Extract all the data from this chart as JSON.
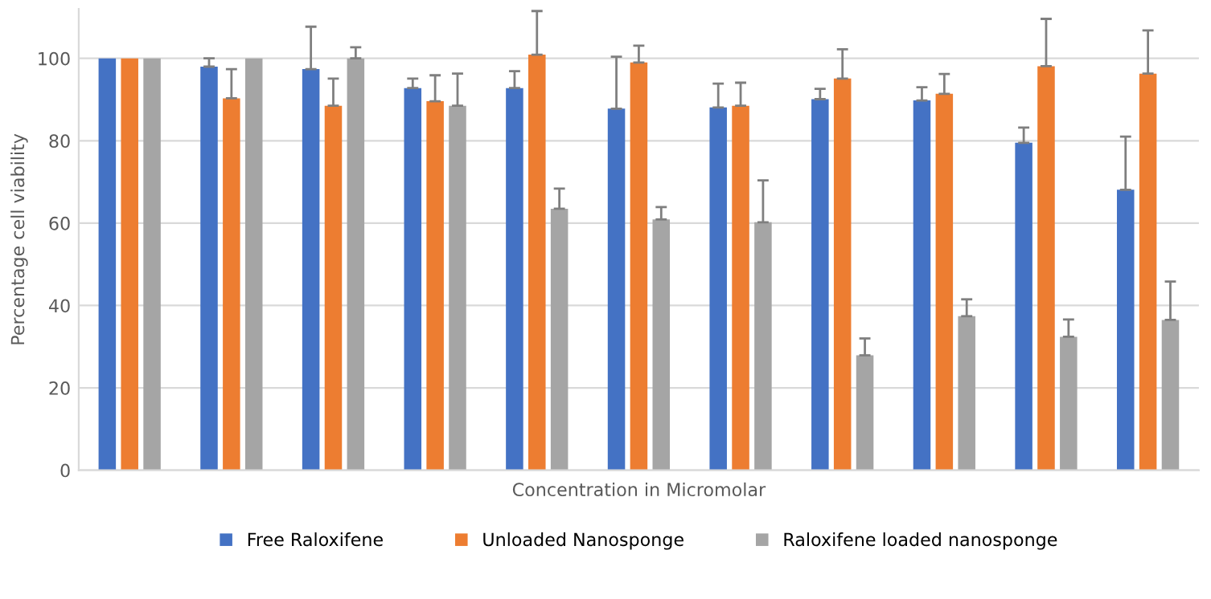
{
  "chart_data": {
    "type": "bar",
    "xlabel": "Concentration in Micromolar",
    "ylabel": "Percentage cell viability",
    "categories": [
      null,
      null,
      null,
      null,
      null,
      null,
      null,
      null,
      null,
      null,
      null
    ],
    "ylim": [
      0,
      112
    ],
    "yticks": [
      0,
      20,
      40,
      60,
      80,
      100
    ],
    "grid": "y",
    "legend": "bottom",
    "series": [
      {
        "name": "Free Raloxifene",
        "color": "#4472c4",
        "values": [
          100,
          98.0,
          97.4,
          92.8,
          92.8,
          87.8,
          88.1,
          90.1,
          89.8,
          79.5,
          68.1
        ],
        "errors": [
          null,
          [
            98.0,
            100.0
          ],
          [
            97.4,
            107.7
          ],
          [
            92.8,
            95.1
          ],
          [
            92.8,
            96.9
          ],
          [
            87.8,
            100.4
          ],
          [
            88.1,
            93.9
          ],
          [
            90.1,
            92.6
          ],
          [
            89.8,
            93.0
          ],
          [
            79.5,
            83.2
          ],
          [
            68.1,
            81.0
          ]
        ]
      },
      {
        "name": "Unloaded Nanosponge",
        "color": "#ed7d31",
        "values": [
          100,
          90.3,
          88.5,
          89.6,
          100.9,
          99.0,
          88.5,
          95.1,
          91.4,
          98.1,
          96.3
        ],
        "errors": [
          null,
          [
            90.3,
            97.4
          ],
          [
            88.5,
            95.1
          ],
          [
            89.6,
            95.9
          ],
          [
            100.9,
            111.5
          ],
          [
            99.0,
            103.1
          ],
          [
            88.5,
            94.1
          ],
          [
            95.1,
            102.2
          ],
          [
            91.4,
            96.2
          ],
          [
            98.1,
            109.6
          ],
          [
            96.3,
            106.8
          ]
        ]
      },
      {
        "name": "Raloxifene loaded nanosponge",
        "color": "#a5a5a5",
        "values": [
          100,
          100,
          100,
          88.5,
          63.5,
          60.9,
          60.2,
          27.9,
          37.4,
          32.4,
          36.5
        ],
        "errors": [
          null,
          null,
          [
            100,
            102.7
          ],
          [
            88.5,
            96.3
          ],
          [
            63.5,
            68.4
          ],
          [
            60.9,
            63.9
          ],
          [
            60.2,
            70.4
          ],
          [
            27.9,
            32.0
          ],
          [
            37.4,
            41.5
          ],
          [
            32.4,
            36.6
          ],
          [
            36.5,
            45.8
          ]
        ]
      }
    ]
  }
}
